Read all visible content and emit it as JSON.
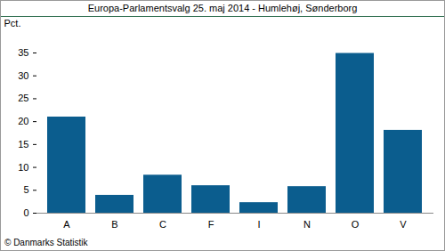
{
  "chart_data": {
    "type": "bar",
    "title": "Europa-Parlamentsvalg 25. maj 2014 - Humlehøj, Sønderborg",
    "y_label": "Pct.",
    "caption": "© Danmarks Statistik",
    "categories": [
      "A",
      "B",
      "C",
      "F",
      "I",
      "N",
      "O",
      "V"
    ],
    "values": [
      21.0,
      3.9,
      8.3,
      6.0,
      2.3,
      5.8,
      34.9,
      18.1
    ],
    "color": "#0b5d8e",
    "ylim": [
      0,
      35
    ],
    "yticks": [
      0,
      5,
      10,
      15,
      20,
      25,
      30,
      35
    ],
    "grid": false
  }
}
